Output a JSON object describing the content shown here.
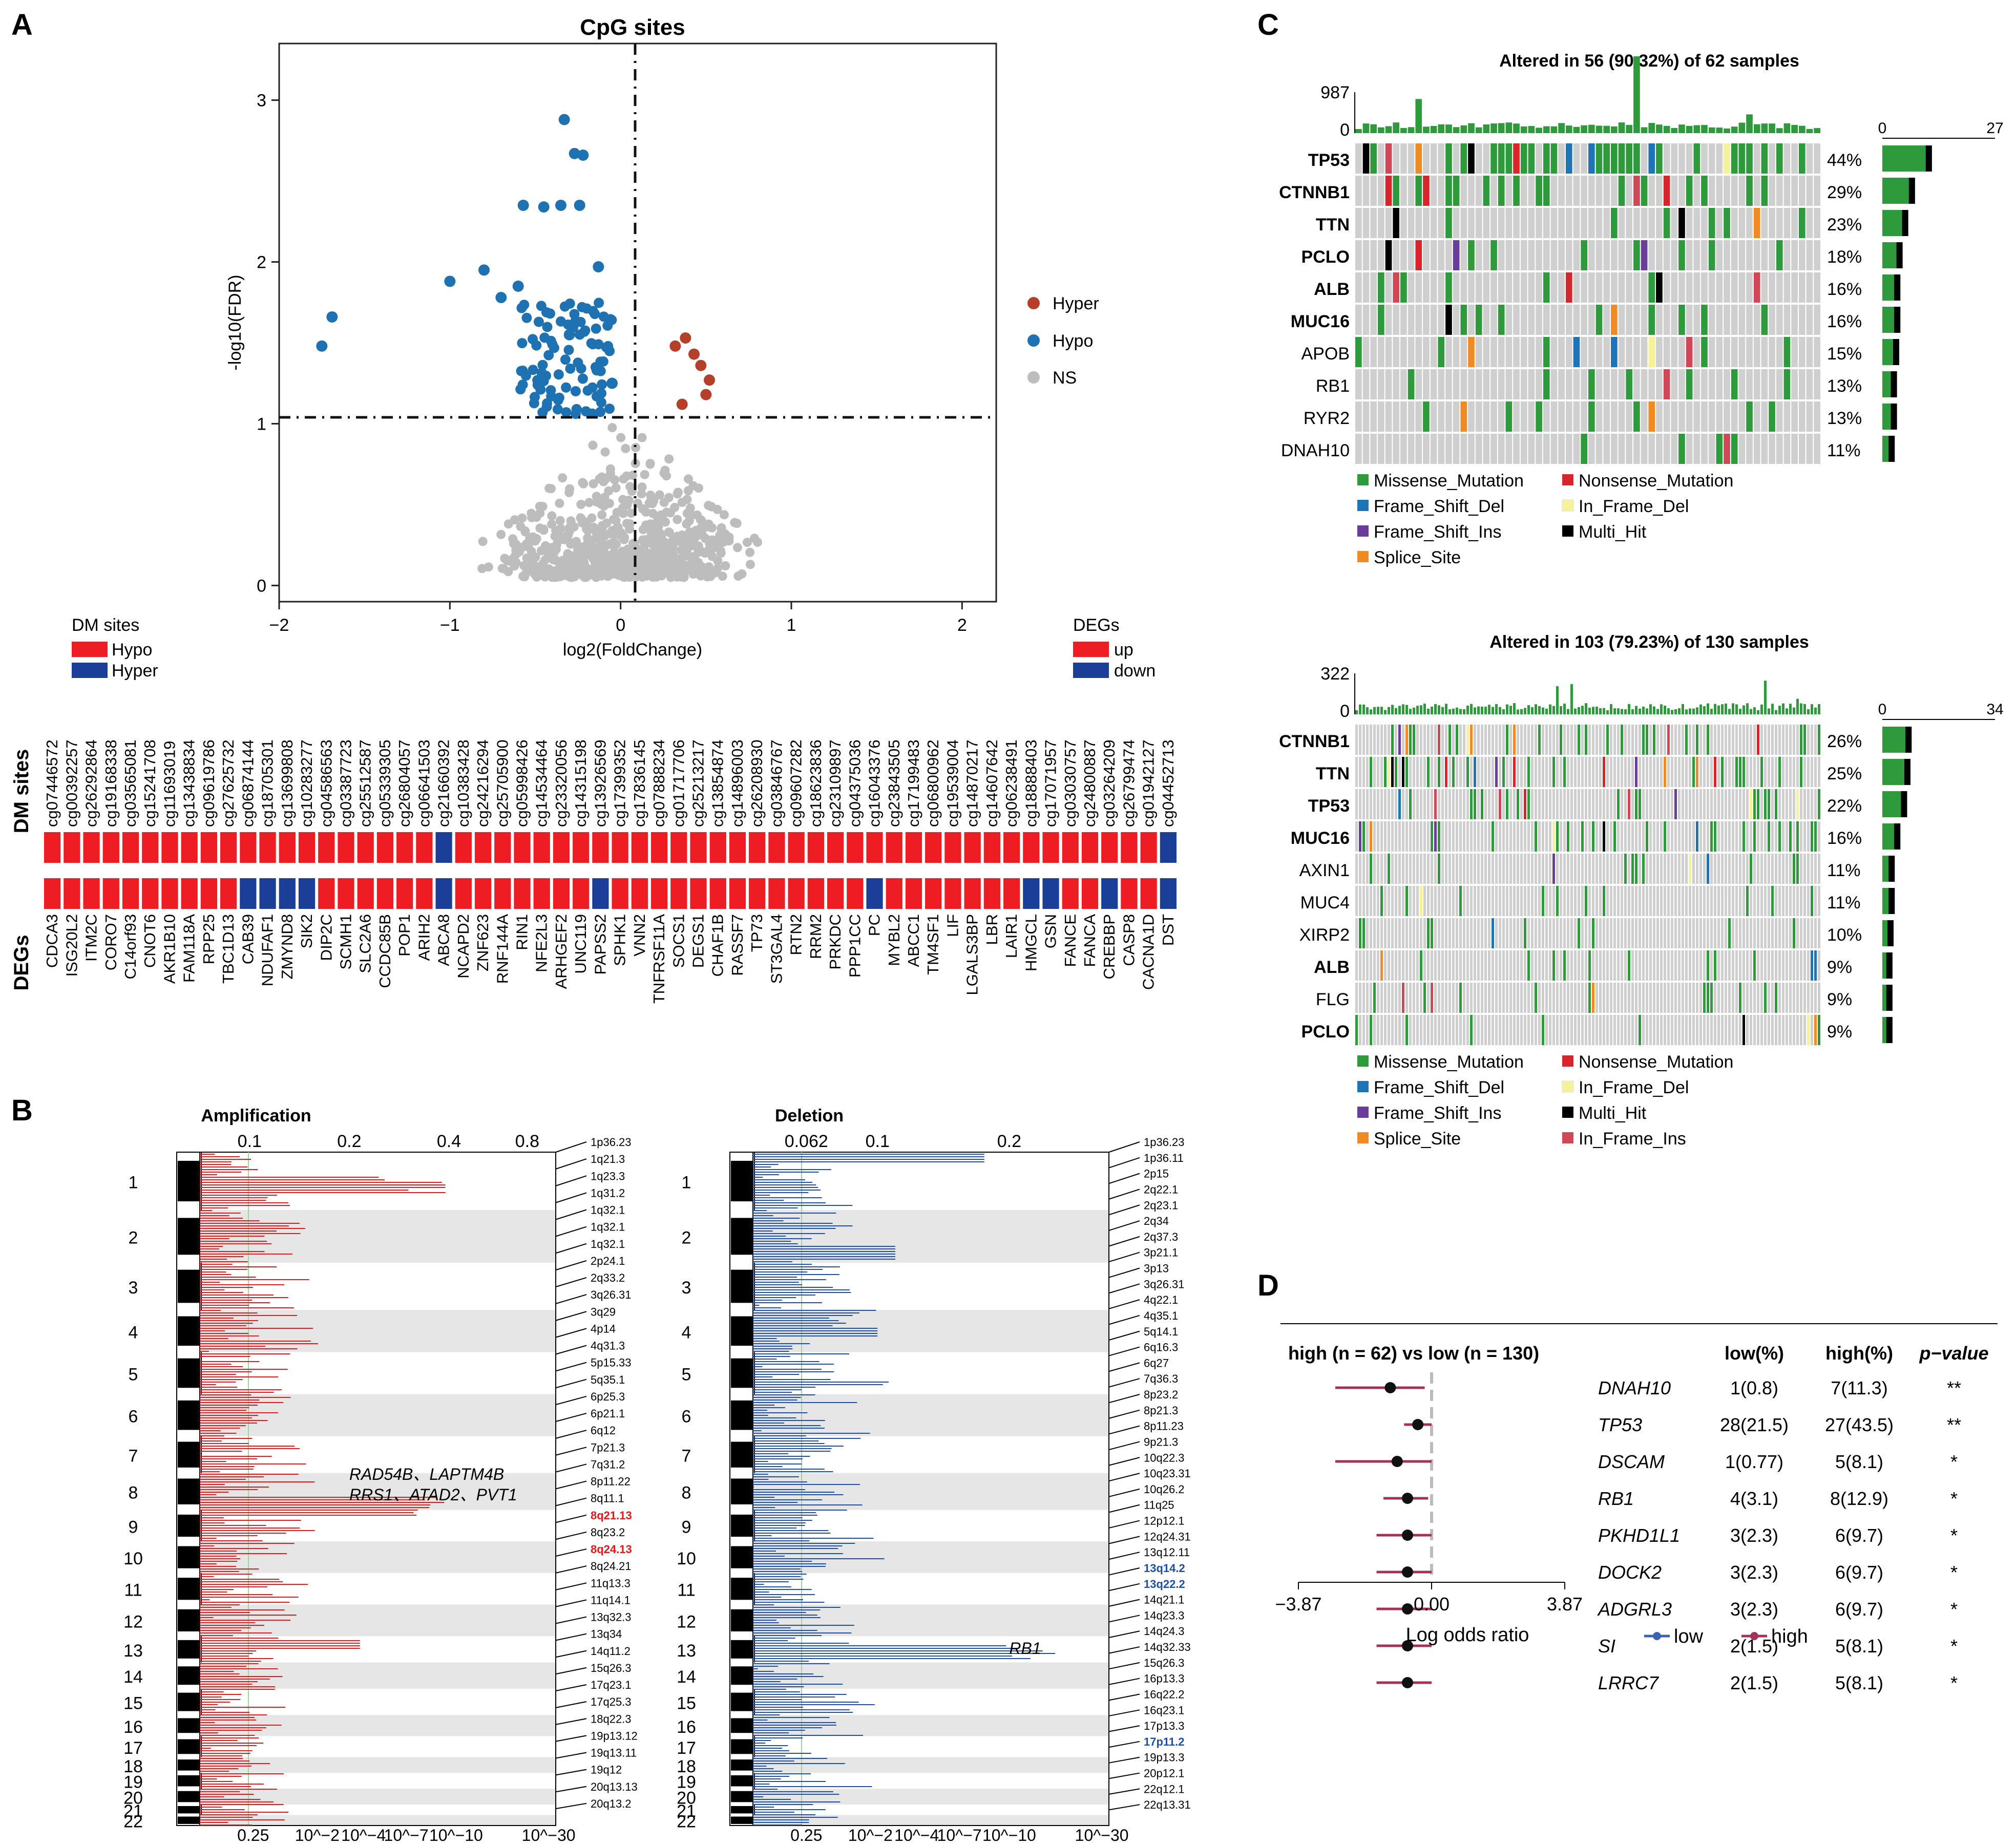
{
  "panels": {
    "a": "A",
    "b": "B",
    "c": "C",
    "d": "D"
  },
  "volcano": {
    "title": "CpG sites",
    "xlabel": "log2(FoldChange)",
    "ylabel": "-log10(FDR)",
    "legend": [
      {
        "label": "Hyper",
        "color": "#b5402a"
      },
      {
        "label": "Hypo",
        "color": "#1f72b2"
      },
      {
        "label": "NS",
        "color": "#bdbdbd"
      }
    ],
    "xticks": [
      "−2",
      "−1",
      "0",
      "1",
      "2"
    ],
    "yticks": [
      "0",
      "1",
      "2",
      "3"
    ]
  },
  "chart_data": [
    {
      "type": "scatter",
      "title": "CpG sites",
      "xlabel": "log2(FoldChange)",
      "ylabel": "-log10(FDR)",
      "xlim": [
        -2.0,
        2.2
      ],
      "ylim": [
        -0.1,
        3.35
      ],
      "thresholds": {
        "x": 0,
        "y": 1
      },
      "series": [
        {
          "name": "Hyper",
          "x": [
            0.32,
            0.38,
            0.43,
            0.47,
            0.52,
            0.5,
            0.36
          ],
          "y": [
            1.48,
            1.53,
            1.43,
            1.36,
            1.27,
            1.18,
            1.12
          ]
        },
        {
          "name": "Hypo",
          "x": [
            -1.75,
            -1.69,
            -0.33,
            -0.27,
            -0.22,
            -0.57,
            -0.45,
            -0.35,
            -0.24,
            -1.0,
            -0.8,
            -0.6,
            -0.13,
            -0.7,
            -0.3,
            -0.05
          ],
          "y": [
            1.48,
            1.66,
            2.88,
            2.67,
            2.66,
            2.35,
            2.34,
            2.35,
            2.35,
            1.88,
            1.95,
            1.85,
            1.97,
            1.78,
            1.55,
            1.25
          ]
        }
      ]
    },
    {
      "type": "bar",
      "title": "Altered in 56 (90.32%) of 62 samples",
      "series": [
        {
          "name": "TP53",
          "values": [
            44
          ]
        },
        {
          "name": "CTNNB1",
          "values": [
            29
          ]
        },
        {
          "name": "TTN",
          "values": [
            23
          ]
        },
        {
          "name": "PCLO",
          "values": [
            18
          ]
        },
        {
          "name": "ALB",
          "values": [
            16
          ]
        },
        {
          "name": "MUC16",
          "values": [
            16
          ]
        },
        {
          "name": "APOB",
          "values": [
            15
          ]
        },
        {
          "name": "RB1",
          "values": [
            13
          ]
        },
        {
          "name": "RYR2",
          "values": [
            13
          ]
        },
        {
          "name": "DNAH10",
          "values": [
            11
          ]
        }
      ]
    },
    {
      "type": "bar",
      "title": "Altered in 103 (79.23%) of 130 samples",
      "series": [
        {
          "name": "CTNNB1",
          "values": [
            26
          ]
        },
        {
          "name": "TTN",
          "values": [
            25
          ]
        },
        {
          "name": "TP53",
          "values": [
            22
          ]
        },
        {
          "name": "MUC16",
          "values": [
            16
          ]
        },
        {
          "name": "AXIN1",
          "values": [
            11
          ]
        },
        {
          "name": "MUC4",
          "values": [
            11
          ]
        },
        {
          "name": "XIRP2",
          "values": [
            10
          ]
        },
        {
          "name": "ALB",
          "values": [
            9
          ]
        },
        {
          "name": "FLG",
          "values": [
            9
          ]
        },
        {
          "name": "PCLO",
          "values": [
            9
          ]
        }
      ]
    },
    {
      "type": "scatter",
      "title": "high (n = 62) vs low (n = 130)",
      "xlabel": "Log odds ratio",
      "xlim": [
        -3.87,
        3.87
      ],
      "categories": [
        "DNAH10",
        "TP53",
        "DSCAM",
        "RB1",
        "PKHD1L1",
        "DOCK2",
        "ADGRL3",
        "SI",
        "LRRC7"
      ],
      "values": [
        -1.2,
        -0.4,
        -1.0,
        -0.7,
        -0.7,
        -0.7,
        -0.7,
        -0.7,
        -0.7
      ],
      "ci_low": [
        -2.8,
        -0.8,
        -2.8,
        -1.4,
        -1.6,
        -1.6,
        -1.6,
        -1.6,
        -1.6
      ],
      "ci_high": [
        -0.2,
        0.0,
        0.0,
        -0.1,
        0.0,
        0.0,
        0.0,
        0.0,
        0.0
      ]
    }
  ],
  "dm": {
    "legend_title": "DM sites",
    "legend": [
      "Hypo",
      "Hyper"
    ],
    "degs_title": "DEGs",
    "degs_legend": [
      "up",
      "down"
    ],
    "row_dm": "DM sites",
    "row_degs": "DEGs",
    "sites": [
      "cg07446572",
      "cg00392257",
      "cg26292864",
      "cg19168338",
      "cg03565081",
      "cg15241708",
      "cg11693019",
      "cg13438834",
      "cg09619786",
      "cg27625732",
      "cg06874144",
      "cg18705301",
      "cg13699808",
      "cg10283277",
      "cg04586563",
      "cg03387723",
      "cg25512587",
      "cg05339305",
      "cg26804057",
      "cg06641503",
      "cg21660392",
      "cg10383428",
      "cg24216294",
      "cg25705900",
      "cg05998426",
      "cg14534464",
      "cg23320056",
      "cg14315198",
      "cg13926569",
      "cg17399352",
      "cg17836145",
      "cg07888234",
      "cg01717706",
      "cg25213217",
      "cg13854874",
      "cg14896003",
      "cg26208930",
      "cg03846767",
      "cg09607282",
      "cg18623836",
      "cg23109897",
      "cg04375036",
      "cg16043376",
      "cg23843505",
      "cg17199483",
      "cg06800962",
      "cg19539004",
      "cg14870217",
      "cg14607642",
      "cg06238491",
      "cg18888403",
      "cg17071957",
      "cg03030757",
      "cg24800887",
      "cg03264209",
      "cg26799474",
      "cg01942127",
      "cg04452713"
    ],
    "genes": [
      "CDCA3",
      "ISG20L2",
      "ITM2C",
      "CORO7",
      "C14orf93",
      "CNOT6",
      "AKR1B10",
      "FAM118A",
      "RPP25",
      "TBC1D13",
      "CAB39",
      "NDUFAF1",
      "ZMYND8",
      "SIK2",
      "DIP2C",
      "SCMH1",
      "SLC2A6",
      "CCDC85B",
      "POP1",
      "ARIH2",
      "ABCA8",
      "NCAPD2",
      "ZNF623",
      "RNF144A",
      "RIN1",
      "NFE2L3",
      "ARHGEF2",
      "UNC119",
      "PAPSS2",
      "SPHK1",
      "VNN2",
      "TNFRSF11A",
      "SOCS1",
      "DEGS1",
      "CHAF1B",
      "RASSF7",
      "TP73",
      "ST3GAL4",
      "RTN2",
      "RRM2",
      "PRKDC",
      "PPP1CC",
      "PC",
      "MYBL2",
      "ABCC1",
      "TM4SF1",
      "LIF",
      "LGALS3BP",
      "LBR",
      "LAIR1",
      "HMGCL",
      "GSN",
      "FANCE",
      "FANCA",
      "CREBBP",
      "CASP8",
      "CACNA1D",
      "DST"
    ]
  },
  "cnv": {
    "amp": {
      "title": "Amplification",
      "top": [
        "0.1",
        "0.2",
        "0.4",
        "0.8"
      ],
      "bottom": [
        "0.25",
        "10",
        "−2",
        "10",
        "−4",
        "10",
        "−7",
        "10",
        "−10",
        "10",
        "−30"
      ],
      "annot": [
        "RAD54B、LAPTM4B",
        "RRS1、ATAD2、PVT1"
      ],
      "cytobands": [
        "1p36.23",
        "1q21.3",
        "1q23.3",
        "1q31.2",
        "1q32.1",
        "1q32.1",
        "1q32.1",
        "2p24.1",
        "2q33.2",
        "3q26.31",
        "3q29",
        "4p14",
        "4q31.3",
        "5p15.33",
        "5q35.1",
        "6p25.3",
        "6p21.1",
        "6q12",
        "7p21.3",
        "7q31.2",
        "8p11.22",
        "8q11.1",
        "8q21.13",
        "8q23.2",
        "8q24.13",
        "8q24.21",
        "11q13.3",
        "11q14.1",
        "13q32.3",
        "13q34",
        "14q11.2",
        "15q26.3",
        "17q23.1",
        "17q25.3",
        "18q22.3",
        "19p13.12",
        "19q13.11",
        "19q12",
        "20q13.13",
        "20q13.2"
      ]
    },
    "del": {
      "title": "Deletion",
      "top": [
        "0.062",
        "0.1",
        "0.2"
      ],
      "annot": "RB1",
      "cytobands": [
        "1p36.23",
        "1p36.11",
        "2p15",
        "2q22.1",
        "2q23.1",
        "2q34",
        "2q37.3",
        "3p21.1",
        "3p13",
        "3q26.31",
        "4q22.1",
        "4q35.1",
        "5q14.1",
        "6q16.3",
        "6q27",
        "7q36.3",
        "8p23.2",
        "8p21.3",
        "8p11.23",
        "9p21.3",
        "10q22.3",
        "10q23.31",
        "10q26.2",
        "11q25",
        "12p12.1",
        "12q24.31",
        "13q12.11",
        "13q14.2",
        "13q22.2",
        "14q21.1",
        "14q23.3",
        "14q24.3",
        "14q32.33",
        "15q26.3",
        "16p13.3",
        "16q22.2",
        "16q23.1",
        "17p13.3",
        "17p11.2",
        "19p13.3",
        "20p12.1",
        "22q12.1",
        "22q13.31"
      ]
    },
    "chroms": [
      "1",
      "2",
      "3",
      "4",
      "5",
      "6",
      "7",
      "8",
      "9",
      "10",
      "11",
      "12",
      "13",
      "14",
      "15",
      "16",
      "17",
      "18",
      "19",
      "20",
      "21",
      "22"
    ]
  },
  "onco": {
    "top": {
      "title": "Altered in 56 (90.32%) of 62 samples",
      "ymax": "987",
      "ymin": "0",
      "xmin": "0",
      "xmax": "27",
      "genes": [
        "TP53",
        "CTNNB1",
        "TTN",
        "PCLO",
        "ALB",
        "MUC16",
        "APOB",
        "RB1",
        "RYR2",
        "DNAH10"
      ],
      "bold": [
        true,
        true,
        true,
        true,
        true,
        true,
        false,
        false,
        false,
        false
      ],
      "pct": [
        "44%",
        "29%",
        "23%",
        "18%",
        "16%",
        "16%",
        "15%",
        "13%",
        "13%",
        "11%"
      ]
    },
    "bot": {
      "title": "Altered in 103 (79.23%) of 130 samples",
      "ymax": "322",
      "ymin": "0",
      "xmin": "0",
      "xmax": "34",
      "genes": [
        "CTNNB1",
        "TTN",
        "TP53",
        "MUC16",
        "AXIN1",
        "MUC4",
        "XIRP2",
        "ALB",
        "FLG",
        "PCLO"
      ],
      "bold": [
        true,
        true,
        true,
        true,
        false,
        false,
        false,
        true,
        false,
        true
      ],
      "pct": [
        "26%",
        "25%",
        "22%",
        "16%",
        "11%",
        "11%",
        "10%",
        "9%",
        "9%",
        "9%"
      ]
    },
    "legend": [
      {
        "label": "Missense_Mutation",
        "color": "#2e9a3b"
      },
      {
        "label": "Nonsense_Mutation",
        "color": "#d7262b"
      },
      {
        "label": "Frame_Shift_Del",
        "color": "#1f74b6"
      },
      {
        "label": "In_Frame_Del",
        "color": "#f6f29a"
      },
      {
        "label": "Frame_Shift_Ins",
        "color": "#6a3d9a"
      },
      {
        "label": "Multi_Hit",
        "color": "#000000"
      },
      {
        "label": "Splice_Site",
        "color": "#f08a24"
      },
      {
        "label": "In_Frame_Ins",
        "color": "#d04858"
      }
    ]
  },
  "forest": {
    "header": "high (n = 62) vs low (n = 130)",
    "cols": [
      "low(%)",
      "high(%)",
      "p−value"
    ],
    "genes": [
      "DNAH10",
      "TP53",
      "DSCAM",
      "RB1",
      "PKHD1L1",
      "DOCK2",
      "ADGRL3",
      "SI",
      "LRRC7"
    ],
    "low": [
      "1(0.8)",
      "28(21.5)",
      "1(0.77)",
      "4(3.1)",
      "3(2.3)",
      "3(2.3)",
      "3(2.3)",
      "2(1.5)",
      "2(1.5)"
    ],
    "high": [
      "7(11.3)",
      "27(43.5)",
      "5(8.1)",
      "8(12.9)",
      "6(9.7)",
      "6(9.7)",
      "6(9.7)",
      "5(8.1)",
      "5(8.1)"
    ],
    "p": [
      "**",
      "**",
      "*",
      "*",
      "*",
      "*",
      "*",
      "*",
      "*"
    ],
    "xticks": [
      "−3.87",
      "0.00",
      "3.87"
    ],
    "xlabel": "Log odds ratio",
    "legend": [
      "low",
      "high"
    ]
  }
}
